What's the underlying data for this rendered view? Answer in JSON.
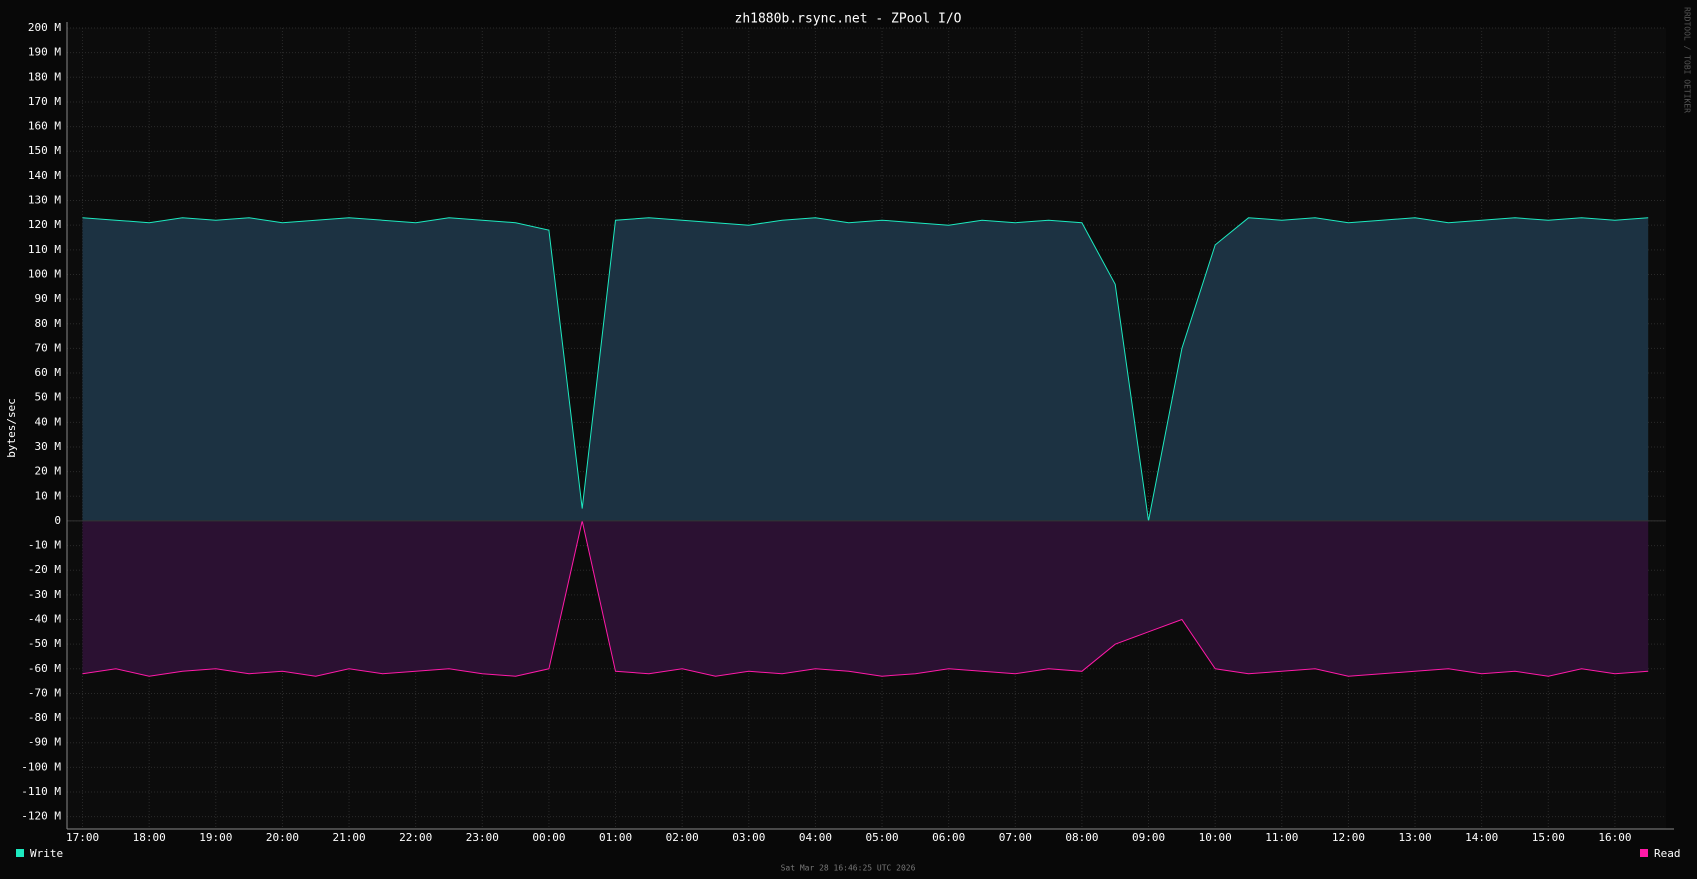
{
  "chart_data": {
    "type": "line",
    "title": "zh1880b.rsync.net - ZPool I/O",
    "y_label": "bytes/sec",
    "watermark": "RRDTOOL / TOBI OETIKER",
    "footer": "Sat Mar 28 16:46:25 UTC 2026",
    "x": [
      "17:00",
      "17:30",
      "18:00",
      "18:30",
      "19:00",
      "19:30",
      "20:00",
      "20:30",
      "21:00",
      "21:30",
      "22:00",
      "22:30",
      "23:00",
      "23:30",
      "00:00",
      "00:30",
      "01:00",
      "01:30",
      "02:00",
      "02:30",
      "03:00",
      "03:30",
      "04:00",
      "04:30",
      "05:00",
      "05:30",
      "06:00",
      "06:30",
      "07:00",
      "07:30",
      "08:00",
      "08:30",
      "09:00",
      "09:30",
      "10:00",
      "10:30",
      "11:00",
      "11:30",
      "12:00",
      "12:30",
      "13:00",
      "13:30",
      "14:00",
      "14:30",
      "15:00",
      "15:30",
      "16:00",
      "16:30"
    ],
    "xlim": [
      "16:46",
      "16:46"
    ],
    "xticks": [
      "17:00",
      "18:00",
      "19:00",
      "20:00",
      "21:00",
      "22:00",
      "23:00",
      "00:00",
      "01:00",
      "02:00",
      "03:00",
      "04:00",
      "05:00",
      "06:00",
      "07:00",
      "08:00",
      "09:00",
      "10:00",
      "11:00",
      "12:00",
      "13:00",
      "14:00",
      "15:00",
      "16:00"
    ],
    "ylim": [
      -125,
      200
    ],
    "yticks": [
      {
        "value": 200,
        "label": "200 M"
      },
      {
        "value": 190,
        "label": "190 M"
      },
      {
        "value": 180,
        "label": "180 M"
      },
      {
        "value": 170,
        "label": "170 M"
      },
      {
        "value": 160,
        "label": "160 M"
      },
      {
        "value": 150,
        "label": "150 M"
      },
      {
        "value": 140,
        "label": "140 M"
      },
      {
        "value": 130,
        "label": "130 M"
      },
      {
        "value": 120,
        "label": "120 M"
      },
      {
        "value": 110,
        "label": "110 M"
      },
      {
        "value": 100,
        "label": "100 M"
      },
      {
        "value": 90,
        "label": "90 M"
      },
      {
        "value": 80,
        "label": "80 M"
      },
      {
        "value": 70,
        "label": "70 M"
      },
      {
        "value": 60,
        "label": "60 M"
      },
      {
        "value": 50,
        "label": "50 M"
      },
      {
        "value": 40,
        "label": "40 M"
      },
      {
        "value": 30,
        "label": "30 M"
      },
      {
        "value": 20,
        "label": "20 M"
      },
      {
        "value": 10,
        "label": "10 M"
      },
      0,
      {
        "value": -10,
        "label": "-10 M"
      },
      {
        "value": -20,
        "label": "-20 M"
      },
      {
        "value": -30,
        "label": "-30 M"
      },
      {
        "value": -40,
        "label": "-40 M"
      },
      {
        "value": -50,
        "label": "-50 M"
      },
      {
        "value": -60,
        "label": "-60 M"
      },
      {
        "value": -70,
        "label": "-70 M"
      },
      {
        "value": -80,
        "label": "-80 M"
      },
      {
        "value": -90,
        "label": "-90 M"
      },
      {
        "value": -100,
        "label": "-100 M"
      },
      {
        "value": -110,
        "label": "-110 M"
      },
      {
        "value": -120,
        "label": "-120 M"
      }
    ],
    "grid": true,
    "series": [
      {
        "name": "Write",
        "color": "#1de9c0",
        "fill_color": "#1c3242",
        "legend": "left",
        "values": [
          123,
          122,
          121,
          123,
          122,
          123,
          121,
          122,
          123,
          122,
          121,
          123,
          122,
          121,
          118,
          5,
          122,
          123,
          122,
          121,
          120,
          122,
          123,
          121,
          122,
          121,
          120,
          122,
          121,
          122,
          121,
          96,
          0,
          70,
          112,
          123,
          122,
          123,
          121,
          122,
          123,
          121,
          122,
          123,
          122,
          123,
          122,
          123
        ]
      },
      {
        "name": "Read",
        "color": "#ff1aa8",
        "fill_color": "#2b1132",
        "legend": "right",
        "values": [
          -62,
          -60,
          -63,
          -61,
          -60,
          -62,
          -61,
          -63,
          -60,
          -62,
          -61,
          -60,
          -62,
          -63,
          -60,
          0,
          -61,
          -62,
          -60,
          -63,
          -61,
          -62,
          -60,
          -61,
          -63,
          -62,
          -60,
          -61,
          -62,
          -60,
          -61,
          -50,
          -45,
          -40,
          -60,
          -62,
          -61,
          -60,
          -63,
          -62,
          -61,
          -60,
          -62,
          -61,
          -63,
          -60,
          -62,
          -61
        ]
      }
    ]
  }
}
